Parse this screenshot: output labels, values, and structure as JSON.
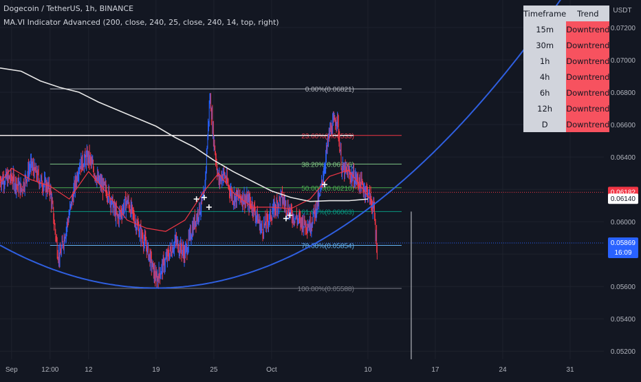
{
  "header": {
    "title": "Dogecoin / TetherUS, 1h, BINANCE",
    "indicator": "MA.VI Indicator Advanced (200, close, 240, 25, close, 240, 14, top, right)"
  },
  "trend_table": {
    "headers": [
      "Timeframe",
      "Trend"
    ],
    "rows": [
      {
        "timeframe": "15m",
        "trend": "Downtrend"
      },
      {
        "timeframe": "30m",
        "trend": "Downtrend"
      },
      {
        "timeframe": "1h",
        "trend": "Downtrend"
      },
      {
        "timeframe": "4h",
        "trend": "Downtrend"
      },
      {
        "timeframe": "6h",
        "trend": "Downtrend"
      },
      {
        "timeframe": "12h",
        "trend": "Downtrend"
      },
      {
        "timeframe": "D",
        "trend": "Downtrend"
      }
    ]
  },
  "colors": {
    "background": "#131722",
    "up": "#2962ff",
    "down": "#f23645",
    "parabola": "#2f5fe0",
    "ma_long": "#e8e8e8",
    "ma_short": "#f23645",
    "trend_cell": "#f7525f",
    "price_label_down": "#f23645",
    "price_label_current": "#2962ff"
  },
  "chart_data": {
    "type": "candlestick",
    "symbol": "DOGEUSDT",
    "interval": "1h",
    "currency": "USDT",
    "y_axis": {
      "ticks": [
        "0.07200",
        "0.07000",
        "0.06800",
        "0.06600",
        "0.06400",
        "0.06200",
        "0.06000",
        "0.05800",
        "0.05600",
        "0.05400",
        "0.05200"
      ],
      "range": [
        0.0515,
        0.0737
      ]
    },
    "x_axis": {
      "ticks": [
        {
          "t": 0,
          "label": "Sep"
        },
        {
          "t": 4,
          "label": "12:00"
        },
        {
          "t": 8,
          "label": "12"
        },
        {
          "t": 15,
          "label": "19"
        },
        {
          "t": 21,
          "label": "25"
        },
        {
          "t": 27,
          "label": "Oct"
        },
        {
          "t": 37,
          "label": "10"
        },
        {
          "t": 44,
          "label": "17"
        },
        {
          "t": 51,
          "label": "24"
        },
        {
          "t": 58,
          "label": "31"
        }
      ],
      "range": [
        -1.2,
        61.5
      ]
    },
    "fib_levels": [
      {
        "label": "0.00%(0.06821)",
        "price": 0.06821,
        "color": "#b2b5be"
      },
      {
        "label": "23.60%(0.06533)",
        "price": 0.06533,
        "color": "#f23645"
      },
      {
        "label": "38.20%(0.06356)",
        "price": 0.06356,
        "color": "#81c784"
      },
      {
        "label": "50.00%(0.06210)",
        "price": 0.0621,
        "color": "#4caf50"
      },
      {
        "label": "61.80%(0.06063)",
        "price": 0.06063,
        "color": "#089981"
      },
      {
        "label": "78.60%(0.05854)",
        "price": 0.05854,
        "color": "#64b5f6"
      },
      {
        "label": "100.00%(0.05588)",
        "price": 0.05588,
        "color": "#787b86"
      }
    ],
    "fib_start_t": 4,
    "fib_end_t": 40.5,
    "horizontal_line": {
      "price": 0.06533,
      "to_t": 35.5
    },
    "parabola": {
      "vertex_t": 15,
      "vertex_price": 0.0559,
      "a": 1.01e-05,
      "t_start": -1.2,
      "t_end": 61.5
    },
    "vertical_marker": {
      "t": 41.5,
      "from_price": 0.06063,
      "to_price": 0.0515
    },
    "price_labels": [
      {
        "price": 0.06182,
        "text": "0.06182",
        "style": "red"
      },
      {
        "price": 0.0614,
        "text": "0.06140",
        "style": "white"
      },
      {
        "price": 0.05869,
        "text": "0.05869",
        "sub": "16:09",
        "style": "blue"
      }
    ],
    "dotted_lines": [
      {
        "price": 0.06182,
        "color": "#f23645"
      },
      {
        "price": 0.05869,
        "color": "#2962ff"
      }
    ],
    "crosses": [
      {
        "t": 19.2,
        "price": 0.0614
      },
      {
        "t": 20.0,
        "price": 0.0615
      },
      {
        "t": 20.5,
        "price": 0.0609
      },
      {
        "t": 28.5,
        "price": 0.0602
      },
      {
        "t": 28.9,
        "price": 0.0604
      },
      {
        "t": 32.5,
        "price": 0.0623
      }
    ],
    "ma_long": [
      [
        -1.2,
        0.0695
      ],
      [
        1,
        0.0693
      ],
      [
        3,
        0.0687
      ],
      [
        5,
        0.0683
      ],
      [
        7,
        0.068
      ],
      [
        9,
        0.0674
      ],
      [
        11,
        0.0669
      ],
      [
        13,
        0.0664
      ],
      [
        15,
        0.0659
      ],
      [
        17,
        0.0652
      ],
      [
        19,
        0.0646
      ],
      [
        21,
        0.0638
      ],
      [
        23,
        0.0631
      ],
      [
        25,
        0.0625
      ],
      [
        27,
        0.0619
      ],
      [
        29,
        0.0615
      ],
      [
        31,
        0.06125
      ],
      [
        33,
        0.0613
      ],
      [
        35,
        0.0613
      ],
      [
        37,
        0.0614
      ]
    ],
    "ma_short": [
      [
        -1.2,
        0.0624
      ],
      [
        0,
        0.0633
      ],
      [
        2,
        0.0626
      ],
      [
        4,
        0.0622
      ],
      [
        6,
        0.0614
      ],
      [
        8,
        0.0631
      ],
      [
        10,
        0.0617
      ],
      [
        12,
        0.0601
      ],
      [
        14,
        0.0596
      ],
      [
        16,
        0.0594
      ],
      [
        18,
        0.0601
      ],
      [
        20,
        0.0619
      ],
      [
        21.5,
        0.063
      ],
      [
        23,
        0.0618
      ],
      [
        25,
        0.0609
      ],
      [
        27,
        0.0609
      ],
      [
        29,
        0.0608
      ],
      [
        31,
        0.0614
      ],
      [
        33,
        0.0628
      ],
      [
        35,
        0.0632
      ],
      [
        36.5,
        0.062
      ],
      [
        37.5,
        0.0612
      ]
    ],
    "price_path": [
      [
        -1.2,
        0.0626
      ],
      [
        0,
        0.0627
      ],
      [
        1,
        0.062
      ],
      [
        2,
        0.0635
      ],
      [
        3,
        0.0625
      ],
      [
        4,
        0.062
      ],
      [
        4.8,
        0.0581
      ],
      [
        5,
        0.0578
      ],
      [
        6,
        0.0605
      ],
      [
        7,
        0.0635
      ],
      [
        8,
        0.064
      ],
      [
        9,
        0.0625
      ],
      [
        10,
        0.0618
      ],
      [
        11,
        0.0602
      ],
      [
        12,
        0.0613
      ],
      [
        13,
        0.0598
      ],
      [
        14,
        0.0585
      ],
      [
        15,
        0.0564
      ],
      [
        16,
        0.0576
      ],
      [
        17,
        0.0588
      ],
      [
        18,
        0.058
      ],
      [
        19,
        0.06
      ],
      [
        20,
        0.0615
      ],
      [
        20.6,
        0.0678
      ],
      [
        21,
        0.065
      ],
      [
        21.5,
        0.0625
      ],
      [
        22,
        0.063
      ],
      [
        23,
        0.0615
      ],
      [
        24,
        0.0615
      ],
      [
        25,
        0.061
      ],
      [
        26,
        0.0595
      ],
      [
        27,
        0.0605
      ],
      [
        28,
        0.0615
      ],
      [
        29,
        0.0605
      ],
      [
        30,
        0.06
      ],
      [
        31,
        0.0598
      ],
      [
        32,
        0.0615
      ],
      [
        33,
        0.0655
      ],
      [
        33.8,
        0.0665
      ],
      [
        34.3,
        0.0632
      ],
      [
        35,
        0.063
      ],
      [
        36,
        0.0625
      ],
      [
        37,
        0.0618
      ],
      [
        37.6,
        0.0608
      ],
      [
        38,
        0.058
      ]
    ]
  }
}
